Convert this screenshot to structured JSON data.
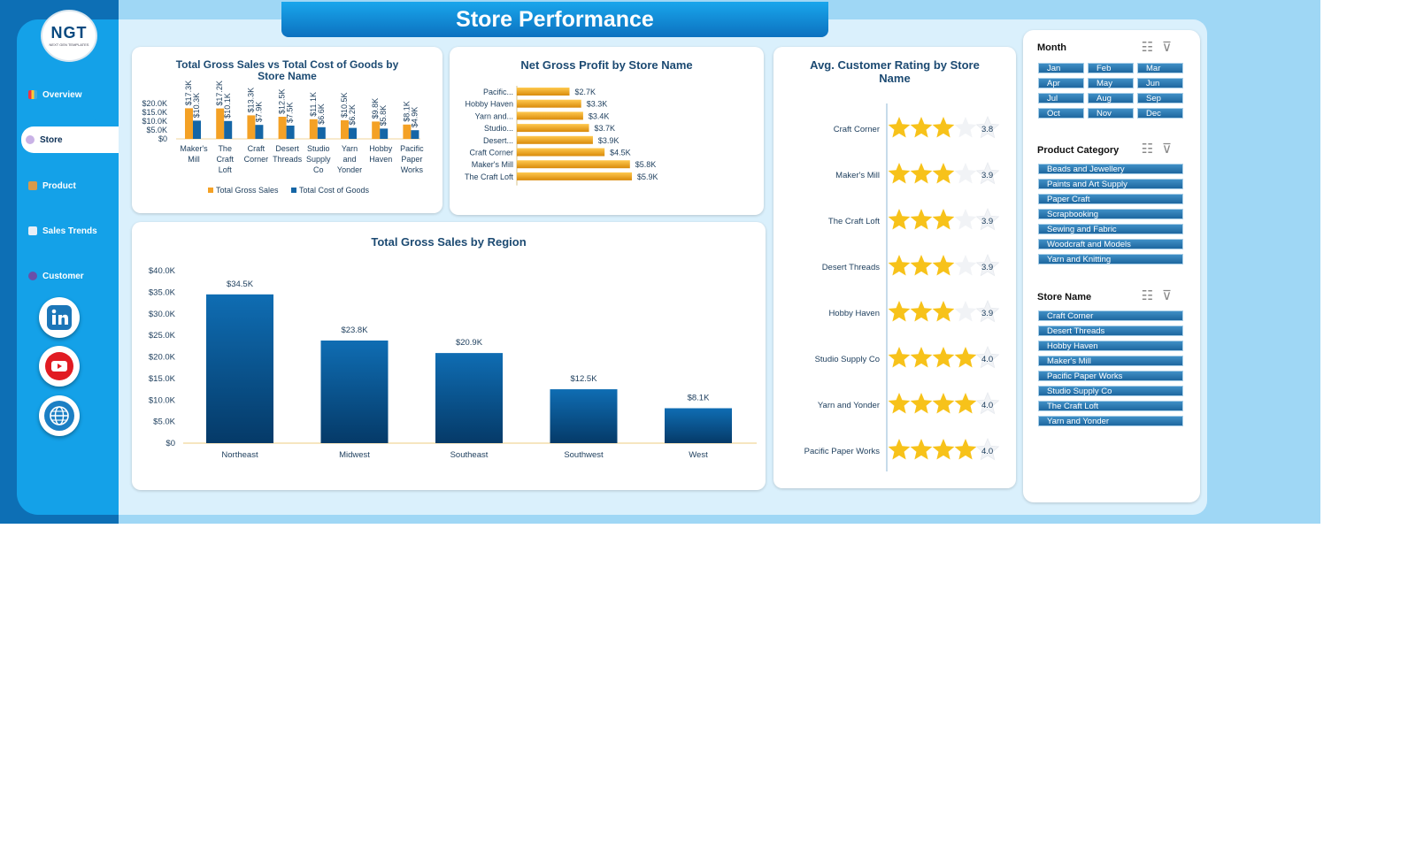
{
  "title": "Store Performance",
  "logo": {
    "text": "NGT",
    "tagline": "NEXT GEN TEMPLATES"
  },
  "nav": [
    {
      "label": "Overview",
      "icon": "bar-chart-icon"
    },
    {
      "label": "Store",
      "icon": "gear-icon",
      "active": true
    },
    {
      "label": "Product",
      "icon": "box-icon"
    },
    {
      "label": "Sales Trends",
      "icon": "line-chart-icon"
    },
    {
      "label": "Customer",
      "icon": "people-icon"
    }
  ],
  "social": [
    "linkedin-icon",
    "youtube-icon",
    "globe-icon"
  ],
  "colors": {
    "gross": "#f4a125",
    "cost": "#1566a6",
    "bar_region": "#0d5a96",
    "star": "#f7c21a"
  },
  "chart_data": [
    {
      "type": "bar",
      "title": "Total Gross Sales vs Total Cost of Goods by Store Name",
      "categories": [
        "Maker's Mill",
        "The Craft Loft",
        "Craft Corner",
        "Desert Threads",
        "Studio Supply Co",
        "Yarn and Yonder",
        "Hobby Haven",
        "Pacific Paper Works"
      ],
      "series": [
        {
          "name": "Total Gross Sales",
          "values": [
            17.3,
            17.2,
            13.3,
            12.5,
            11.1,
            10.5,
            9.8,
            8.1
          ],
          "labels": [
            "$17.3K",
            "$17.2K",
            "$13.3K",
            "$12.5K",
            "$11.1K",
            "$10.5K",
            "$9.8K",
            "$8.1K"
          ]
        },
        {
          "name": "Total Cost of Goods",
          "values": [
            10.3,
            10.1,
            7.9,
            7.5,
            6.6,
            6.2,
            5.8,
            4.9
          ],
          "labels": [
            "$10.3K",
            "$10.1K",
            "$7.9K",
            "$7.5K",
            "$6.6K",
            "$6.2K",
            "$5.8K",
            "$4.9K"
          ]
        }
      ],
      "yticks": [
        "$0",
        "$5.0K",
        "$10.0K",
        "$15.0K",
        "$20.0K"
      ],
      "ylim": [
        0,
        20
      ],
      "legend": "bottom"
    },
    {
      "type": "bar",
      "orientation": "horizontal",
      "title": "Net Gross Profit by Store Name",
      "categories": [
        "Pacific...",
        "Hobby Haven",
        "Yarn and...",
        "Studio...",
        "Desert...",
        "Craft Corner",
        "Maker's Mill",
        "The Craft Loft"
      ],
      "values": [
        2.7,
        3.3,
        3.4,
        3.7,
        3.9,
        4.5,
        5.8,
        5.9
      ],
      "labels": [
        "$2.7K",
        "$3.3K",
        "$3.4K",
        "$3.7K",
        "$3.9K",
        "$4.5K",
        "$5.8K",
        "$5.9K"
      ]
    },
    {
      "type": "bar",
      "title": "Total Gross Sales by Region",
      "categories": [
        "Northeast",
        "Midwest",
        "Southeast",
        "Southwest",
        "West"
      ],
      "values": [
        34.5,
        23.8,
        20.9,
        12.5,
        8.1
      ],
      "labels": [
        "$34.5K",
        "$23.8K",
        "$20.9K",
        "$12.5K",
        "$8.1K"
      ],
      "yticks": [
        "$0",
        "$5.0K",
        "$10.0K",
        "$15.0K",
        "$20.0K",
        "$25.0K",
        "$30.0K",
        "$35.0K",
        "$40.0K"
      ],
      "ylim": [
        0,
        40
      ]
    },
    {
      "type": "bar",
      "orientation": "horizontal",
      "title": "Avg. Customer Rating by Store Name",
      "categories": [
        "Craft Corner",
        "Maker's Mill",
        "The Craft Loft",
        "Desert Threads",
        "Hobby Haven",
        "Studio Supply Co",
        "Yarn and Yonder",
        "Pacific Paper Works"
      ],
      "values": [
        3.8,
        3.9,
        3.9,
        3.9,
        3.9,
        4.0,
        4.0,
        4.0
      ],
      "labels": [
        "3.8",
        "3.9",
        "3.9",
        "3.9",
        "3.9",
        "4.0",
        "4.0",
        "4.0"
      ],
      "max": 5
    }
  ],
  "slicers": {
    "month": {
      "title": "Month",
      "items": [
        "Jan",
        "Feb",
        "Mar",
        "Apr",
        "May",
        "Jun",
        "Jul",
        "Aug",
        "Sep",
        "Oct",
        "Nov",
        "Dec"
      ]
    },
    "category": {
      "title": "Product Category",
      "items": [
        "Beads and Jewellery",
        "Paints and Art Supply",
        "Paper Craft",
        "Scrapbooking",
        "Sewing and Fabric",
        "Woodcraft and Models",
        "Yarn and Knitting"
      ]
    },
    "store": {
      "title": "Store Name",
      "items": [
        "Craft Corner",
        "Desert Threads",
        "Hobby Haven",
        "Maker's Mill",
        "Pacific Paper Works",
        "Studio Supply Co",
        "The Craft Loft",
        "Yarn and Yonder"
      ]
    }
  }
}
